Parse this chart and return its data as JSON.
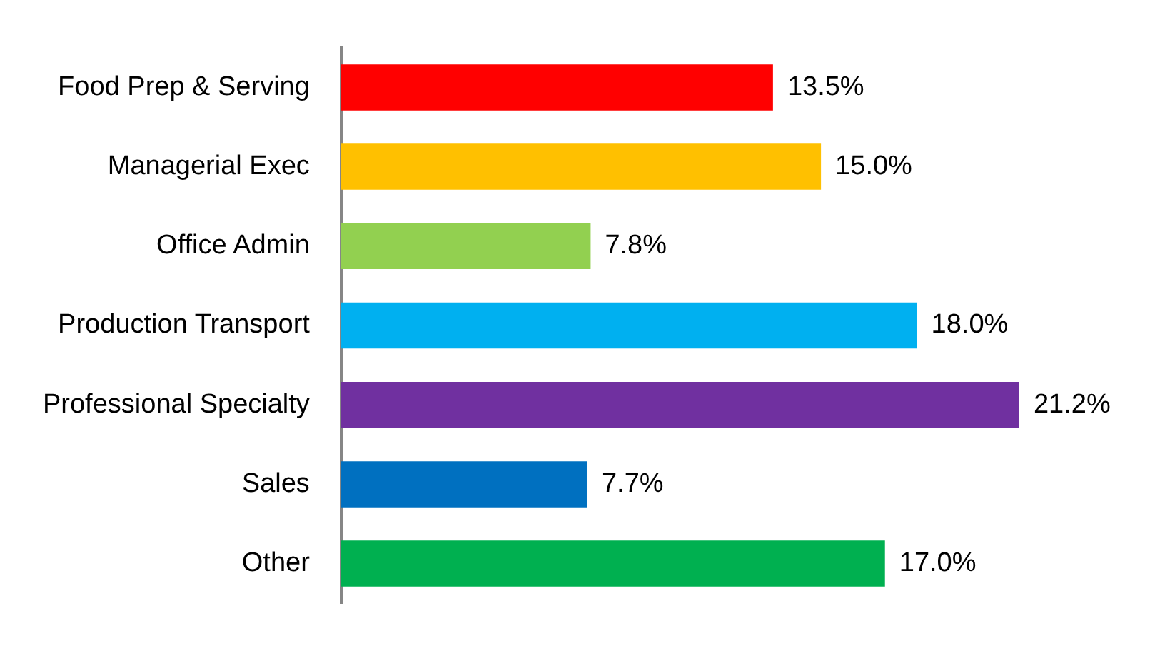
{
  "chart_data": {
    "type": "bar",
    "orientation": "horizontal",
    "tick_labels": "y",
    "categories": [
      "Food Prep & Serving",
      "Managerial Exec",
      "Office Admin",
      "Production Transport",
      "Professional Specialty",
      "Sales",
      "Other"
    ],
    "values": [
      13.5,
      15.0,
      7.8,
      18.0,
      21.2,
      7.7,
      17.0
    ],
    "value_labels": [
      "13.5%",
      "15.0%",
      "7.8%",
      "18.0%",
      "21.2%",
      "7.7%",
      "17.0%"
    ],
    "colors": [
      "#ff0000",
      "#ffc000",
      "#92d050",
      "#00b0f0",
      "#7030a0",
      "#0070c0",
      "#00b050"
    ],
    "grid": false,
    "legend": false
  }
}
